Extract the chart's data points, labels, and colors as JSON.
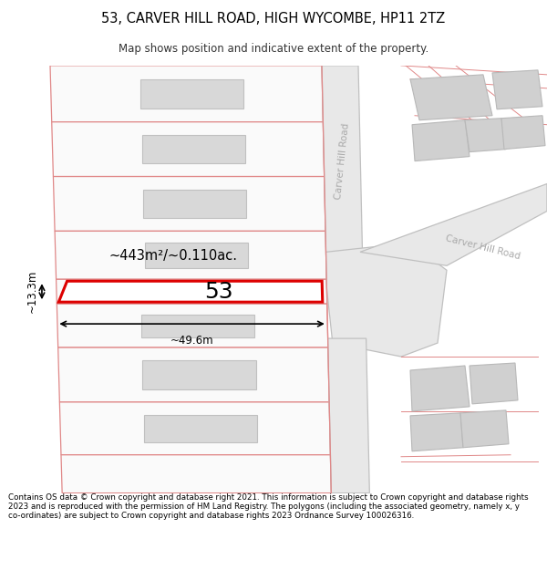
{
  "title": "53, CARVER HILL ROAD, HIGH WYCOMBE, HP11 2TZ",
  "subtitle": "Map shows position and indicative extent of the property.",
  "footer": "Contains OS data © Crown copyright and database right 2021. This information is subject to Crown copyright and database rights 2023 and is reproduced with the permission of HM Land Registry. The polygons (including the associated geometry, namely x, y co-ordinates) are subject to Crown copyright and database rights 2023 Ordnance Survey 100026316.",
  "background_color": "#ffffff",
  "plot_edge_color": "#e08888",
  "highlight_color": "#dd0000",
  "building_color": "#d8d8d8",
  "building_edge": "#c0c0c0",
  "road_gray": "#e0e0e0",
  "road_gray_edge": "#b0b0b0",
  "road_label_color": "#aaaaaa",
  "number_label": "53",
  "area_label": "~443m²/~0.110ac.",
  "width_label": "~49.6m",
  "height_label": "~13.3m"
}
